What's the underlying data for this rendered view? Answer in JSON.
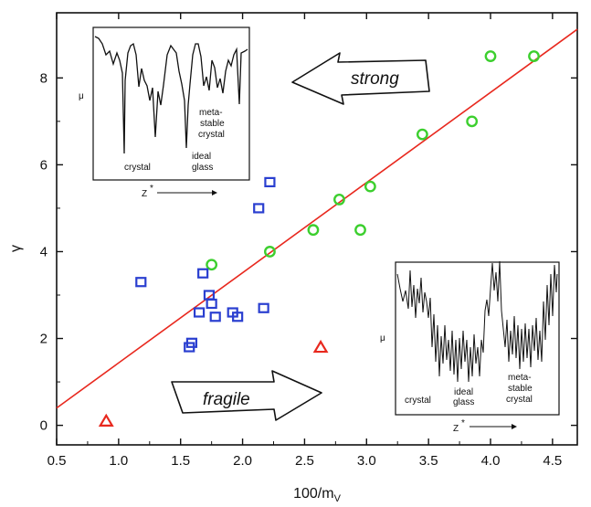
{
  "chart_data": {
    "type": "scatter",
    "xlabel_main": "100/m",
    "xlabel_sub": "V",
    "ylabel": "γ",
    "xlim": [
      0.5,
      4.7
    ],
    "ylim": [
      -0.45,
      9.5
    ],
    "xticks": [
      "0.5",
      "1.0",
      "1.5",
      "2.0",
      "2.5",
      "3.0",
      "3.5",
      "4.0",
      "4.5"
    ],
    "xtick_values": [
      0.5,
      1.0,
      1.5,
      2.0,
      2.5,
      3.0,
      3.5,
      4.0,
      4.5
    ],
    "yticks": [
      "0",
      "2",
      "4",
      "6",
      "8"
    ],
    "ytick_values": [
      0,
      2,
      4,
      6,
      8
    ],
    "fit_line": {
      "x": [
        0.5,
        4.7
      ],
      "y": [
        0.4,
        9.12
      ],
      "color": "#e8281e"
    },
    "series": [
      {
        "marker": "circle",
        "color": "#3ccf2e",
        "points": [
          [
            1.75,
            3.7
          ],
          [
            2.22,
            4.0
          ],
          [
            2.57,
            4.5
          ],
          [
            2.78,
            5.2
          ],
          [
            2.95,
            4.5
          ],
          [
            3.03,
            5.5
          ],
          [
            3.45,
            6.7
          ],
          [
            3.85,
            7.0
          ],
          [
            4.0,
            8.5
          ],
          [
            4.35,
            8.5
          ]
        ]
      },
      {
        "marker": "square",
        "color": "#2a3fd0",
        "points": [
          [
            1.18,
            3.3
          ],
          [
            1.57,
            1.8
          ],
          [
            1.59,
            1.9
          ],
          [
            1.65,
            2.6
          ],
          [
            1.68,
            3.5
          ],
          [
            1.73,
            3.0
          ],
          [
            1.75,
            2.8
          ],
          [
            1.78,
            2.5
          ],
          [
            1.92,
            2.6
          ],
          [
            1.96,
            2.5
          ],
          [
            2.13,
            5.0
          ],
          [
            2.17,
            2.7
          ],
          [
            2.22,
            5.6
          ]
        ]
      },
      {
        "marker": "triangle",
        "color": "#e8281e",
        "points": [
          [
            0.9,
            0.1
          ],
          [
            2.63,
            1.8
          ]
        ]
      }
    ],
    "annotations": {
      "strong_label": "strong",
      "fragile_label": "fragile",
      "inset_top": {
        "mu": "μ",
        "z": "Z",
        "z_sup": "*",
        "crystal": "crystal",
        "ideal1": "ideal",
        "ideal2": "glass",
        "meta1": "meta-",
        "meta2": "stable",
        "meta3": "crystal"
      },
      "inset_bottom": {
        "mu": "μ",
        "z": "Z",
        "z_sup": "*",
        "crystal": "crystal",
        "ideal1": "ideal",
        "ideal2": "glass",
        "meta1": "meta-",
        "meta2": "stable",
        "meta3": "crystal"
      }
    }
  }
}
